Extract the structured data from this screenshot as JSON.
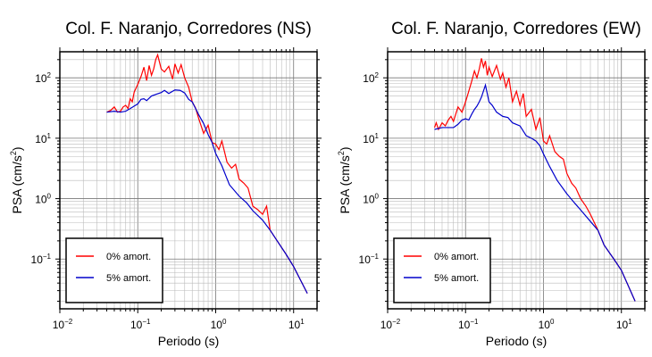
{
  "chart_data": [
    {
      "type": "line",
      "title": "Col. F. Naranjo, Corredores (NS)",
      "xlabel": "Periodo (s)",
      "ylabel": "PSA (cm/s²)",
      "xscale": "log",
      "yscale": "log",
      "xlim": [
        0.01,
        20
      ],
      "ylim": [
        0.015,
        270
      ],
      "x_ticks": [
        "10-2",
        "10-1",
        "100",
        "101"
      ],
      "y_ticks": [
        "10-1",
        "100",
        "101",
        "102"
      ],
      "grid": true,
      "legend_position": "bottom-left",
      "colors": {
        "0% amort.": "#ff0000",
        "5% amort.": "#0000cc"
      },
      "series": [
        {
          "name": "0% amort.",
          "x": [
            0.04,
            0.045,
            0.05,
            0.055,
            0.06,
            0.065,
            0.07,
            0.075,
            0.08,
            0.085,
            0.09,
            0.1,
            0.11,
            0.12,
            0.13,
            0.14,
            0.15,
            0.16,
            0.17,
            0.18,
            0.2,
            0.22,
            0.25,
            0.28,
            0.3,
            0.33,
            0.36,
            0.4,
            0.45,
            0.5,
            0.55,
            0.6,
            0.7,
            0.8,
            0.9,
            1.0,
            1.1,
            1.2,
            1.4,
            1.6,
            1.8,
            2.0,
            2.3,
            2.6,
            3.0,
            3.5,
            4.0,
            4.5,
            5.0,
            6.0,
            8.0,
            10.0,
            15.0
          ],
          "y": [
            27,
            29,
            33,
            27,
            28,
            33,
            35,
            31,
            45,
            40,
            58,
            78,
            105,
            150,
            90,
            160,
            110,
            140,
            200,
            240,
            140,
            125,
            155,
            95,
            170,
            120,
            165,
            100,
            70,
            40,
            32,
            22,
            12,
            16.5,
            8.5,
            8,
            6.5,
            9,
            4,
            3.2,
            3.7,
            2.1,
            1.8,
            1.5,
            0.75,
            0.65,
            0.55,
            0.75,
            0.3,
            0.21,
            0.12,
            0.075,
            0.027
          ]
        },
        {
          "name": "5% amort.",
          "x": [
            0.04,
            0.05,
            0.06,
            0.07,
            0.08,
            0.09,
            0.1,
            0.11,
            0.12,
            0.13,
            0.14,
            0.15,
            0.17,
            0.2,
            0.22,
            0.25,
            0.3,
            0.35,
            0.4,
            0.45,
            0.5,
            0.6,
            0.7,
            0.8,
            0.9,
            1.0,
            1.2,
            1.5,
            2.0,
            2.5,
            3.0,
            4.0,
            5.0,
            6.0,
            8.0,
            10.0,
            15.0
          ],
          "y": [
            27,
            28,
            27,
            28,
            31,
            34,
            37,
            44,
            45,
            42,
            46,
            50,
            53,
            57,
            62,
            55,
            63,
            62,
            56,
            44,
            40,
            25,
            17.5,
            11.5,
            8.5,
            5.6,
            3.5,
            1.7,
            1.1,
            0.85,
            0.63,
            0.44,
            0.3,
            0.21,
            0.12,
            0.075,
            0.027
          ]
        }
      ]
    },
    {
      "type": "line",
      "title": "Col. F. Naranjo, Corredores (EW)",
      "xlabel": "Periodo (s)",
      "ylabel": "PSA (cm/s²)",
      "xscale": "log",
      "yscale": "log",
      "xlim": [
        0.01,
        20
      ],
      "ylim": [
        0.015,
        270
      ],
      "x_ticks": [
        "10-2",
        "10-1",
        "100",
        "101"
      ],
      "y_ticks": [
        "10-1",
        "100",
        "101",
        "102"
      ],
      "grid": true,
      "legend_position": "bottom-left",
      "colors": {
        "0% amort.": "#ff0000",
        "5% amort.": "#0000cc"
      },
      "series": [
        {
          "name": "0% amort.",
          "x": [
            0.04,
            0.042,
            0.045,
            0.05,
            0.055,
            0.06,
            0.065,
            0.07,
            0.08,
            0.09,
            0.1,
            0.11,
            0.12,
            0.13,
            0.14,
            0.15,
            0.16,
            0.17,
            0.18,
            0.19,
            0.2,
            0.22,
            0.25,
            0.28,
            0.3,
            0.33,
            0.36,
            0.4,
            0.45,
            0.5,
            0.55,
            0.6,
            0.7,
            0.8,
            0.9,
            1.0,
            1.1,
            1.2,
            1.4,
            1.6,
            1.8,
            2.0,
            2.3,
            2.6,
            3.0,
            3.5,
            4.0,
            4.5,
            5.0,
            6.0,
            8.0,
            10.0,
            15.0
          ],
          "y": [
            15,
            18,
            14,
            18,
            16,
            20,
            23,
            19,
            33,
            27,
            40,
            60,
            88,
            130,
            100,
            140,
            210,
            150,
            190,
            110,
            150,
            105,
            160,
            95,
            120,
            70,
            100,
            40,
            60,
            35,
            55,
            23,
            30,
            14,
            22,
            9,
            8,
            11,
            6,
            5,
            4.5,
            2.6,
            1.8,
            1.5,
            1.0,
            0.75,
            0.55,
            0.4,
            0.3,
            0.17,
            0.1,
            0.065,
            0.02
          ]
        },
        {
          "name": "5% amort.",
          "x": [
            0.04,
            0.05,
            0.06,
            0.07,
            0.08,
            0.09,
            0.1,
            0.11,
            0.12,
            0.13,
            0.14,
            0.15,
            0.16,
            0.18,
            0.2,
            0.22,
            0.25,
            0.3,
            0.35,
            0.4,
            0.5,
            0.6,
            0.7,
            0.8,
            0.9,
            1.0,
            1.2,
            1.5,
            2.0,
            2.5,
            3.0,
            4.0,
            5.0,
            6.0,
            8.0,
            10.0,
            15.0
          ],
          "y": [
            14,
            15,
            15,
            15,
            17,
            20,
            21,
            20,
            25,
            30,
            34,
            40,
            48,
            76,
            40,
            35,
            27,
            23,
            22,
            18,
            16,
            11,
            10,
            9,
            7.5,
            5.5,
            3.4,
            2.0,
            1.2,
            0.85,
            0.65,
            0.42,
            0.3,
            0.17,
            0.1,
            0.065,
            0.02
          ]
        }
      ]
    }
  ]
}
